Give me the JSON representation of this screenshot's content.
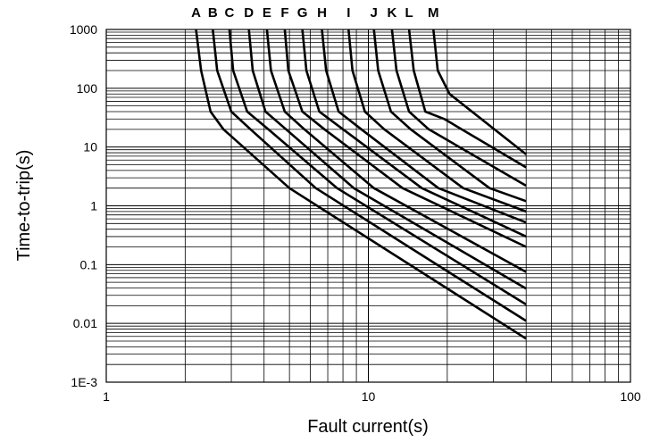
{
  "chart_data": {
    "type": "line",
    "title": "",
    "xlabel": "Fault current(s)",
    "ylabel": "Time-to-trip(s)",
    "x_scale": "log",
    "y_scale": "log",
    "xlim": [
      1,
      100
    ],
    "ylim": [
      0.001,
      1000
    ],
    "x_ticks": [
      1,
      10,
      100
    ],
    "x_tick_labels": [
      "1",
      "10",
      "100"
    ],
    "y_ticks": [
      0.001,
      0.01,
      0.1,
      1,
      10,
      100,
      1000
    ],
    "y_tick_labels": [
      "1E-3",
      "0.01",
      "0.1",
      "1",
      "10",
      "100",
      "1000"
    ],
    "grid": true,
    "series": [
      {
        "name": "A",
        "points": [
          [
            2.2,
            1000
          ],
          [
            2.3,
            200
          ],
          [
            2.5,
            40
          ],
          [
            2.8,
            20
          ],
          [
            5,
            2
          ],
          [
            40,
            0.0055
          ]
        ]
      },
      {
        "name": "B",
        "points": [
          [
            2.55,
            1000
          ],
          [
            2.65,
            200
          ],
          [
            3,
            40
          ],
          [
            3.55,
            20
          ],
          [
            6.3,
            2
          ],
          [
            40,
            0.011
          ]
        ]
      },
      {
        "name": "C",
        "points": [
          [
            2.95,
            1000
          ],
          [
            3.05,
            200
          ],
          [
            3.45,
            40
          ],
          [
            4.15,
            20
          ],
          [
            7.6,
            2
          ],
          [
            40,
            0.021
          ]
        ]
      },
      {
        "name": "D",
        "points": [
          [
            3.5,
            1000
          ],
          [
            3.62,
            200
          ],
          [
            4.05,
            40
          ],
          [
            4.85,
            20
          ],
          [
            8.8,
            2
          ],
          [
            40,
            0.039
          ]
        ]
      },
      {
        "name": "E",
        "points": [
          [
            4.1,
            1000
          ],
          [
            4.25,
            200
          ],
          [
            4.8,
            40
          ],
          [
            5.7,
            20
          ],
          [
            10.5,
            2
          ],
          [
            40,
            0.075
          ]
        ]
      },
      {
        "name": "F",
        "points": [
          [
            4.8,
            1000
          ],
          [
            4.95,
            200
          ],
          [
            5.6,
            40
          ],
          [
            6.8,
            20
          ],
          [
            13.5,
            2
          ],
          [
            40,
            0.2
          ]
        ]
      },
      {
        "name": "G",
        "points": [
          [
            5.6,
            1000
          ],
          [
            5.8,
            200
          ],
          [
            6.5,
            40
          ],
          [
            8,
            20
          ],
          [
            16,
            2
          ],
          [
            40,
            0.3
          ]
        ]
      },
      {
        "name": "H",
        "points": [
          [
            6.65,
            1000
          ],
          [
            6.9,
            200
          ],
          [
            7.7,
            40
          ],
          [
            9.4,
            20
          ],
          [
            18.5,
            2
          ],
          [
            40,
            0.52
          ]
        ]
      },
      {
        "name": "I",
        "points": [
          [
            8.4,
            1000
          ],
          [
            8.7,
            200
          ],
          [
            9.7,
            40
          ],
          [
            11.5,
            20
          ],
          [
            23,
            2
          ],
          [
            40,
            0.8
          ]
        ]
      },
      {
        "name": "J",
        "points": [
          [
            10.5,
            1000
          ],
          [
            10.9,
            200
          ],
          [
            12.2,
            40
          ],
          [
            14.5,
            20
          ],
          [
            29,
            2
          ],
          [
            40,
            1.2
          ]
        ]
      },
      {
        "name": "K",
        "points": [
          [
            12.3,
            1000
          ],
          [
            12.8,
            200
          ],
          [
            14.3,
            40
          ],
          [
            17,
            20
          ],
          [
            40,
            2.2
          ]
        ]
      },
      {
        "name": "L",
        "points": [
          [
            14.3,
            1000
          ],
          [
            14.9,
            200
          ],
          [
            16.5,
            40
          ],
          [
            19.5,
            30
          ],
          [
            40,
            4.5
          ]
        ]
      },
      {
        "name": "M",
        "points": [
          [
            17.7,
            1000
          ],
          [
            18.4,
            200
          ],
          [
            20.4,
            80
          ],
          [
            40,
            7.5
          ]
        ]
      }
    ]
  }
}
